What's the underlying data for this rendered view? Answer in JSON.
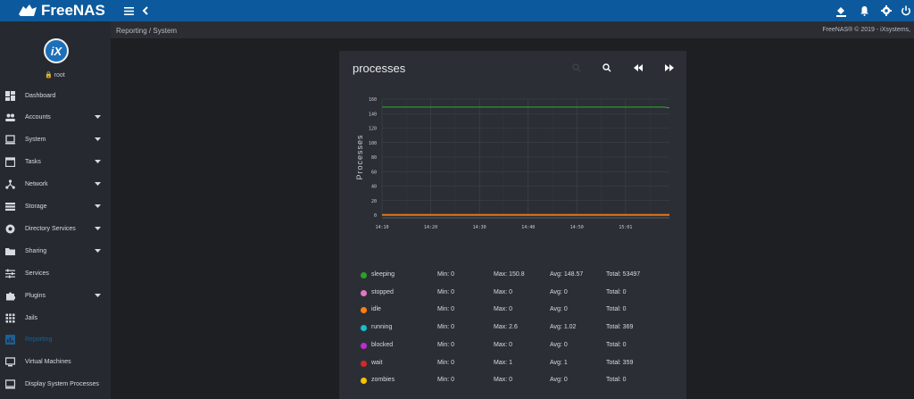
{
  "app": {
    "name": "FreeNAS"
  },
  "breadcrumb": {
    "parent": "Reporting",
    "sep": "/",
    "current": "System"
  },
  "copyright": "FreeNAS® © 2019 - iXsystems,",
  "user": {
    "name": "root"
  },
  "sidebar": {
    "items": [
      {
        "label": "Dashboard",
        "icon": "dashboard-icon",
        "caret": false
      },
      {
        "label": "Accounts",
        "icon": "accounts-icon",
        "caret": true
      },
      {
        "label": "System",
        "icon": "system-icon",
        "caret": true
      },
      {
        "label": "Tasks",
        "icon": "tasks-icon",
        "caret": true
      },
      {
        "label": "Network",
        "icon": "network-icon",
        "caret": true
      },
      {
        "label": "Storage",
        "icon": "storage-icon",
        "caret": true
      },
      {
        "label": "Directory Services",
        "icon": "directory-icon",
        "caret": true
      },
      {
        "label": "Sharing",
        "icon": "sharing-icon",
        "caret": true
      },
      {
        "label": "Services",
        "icon": "services-icon",
        "caret": false
      },
      {
        "label": "Plugins",
        "icon": "plugins-icon",
        "caret": true
      },
      {
        "label": "Jails",
        "icon": "jails-icon",
        "caret": false
      },
      {
        "label": "Reporting",
        "icon": "reporting-icon",
        "caret": false,
        "active": true
      },
      {
        "label": "Virtual Machines",
        "icon": "vm-icon",
        "caret": false
      },
      {
        "label": "Display System Processes",
        "icon": "processes-icon",
        "caret": false
      }
    ]
  },
  "panel": {
    "title": "processes"
  },
  "colors": {
    "topbar": "#0c5a9d",
    "sidebar": "#262a30",
    "panel": "#2b2f35",
    "active": "#1b5f96"
  },
  "chart_data": {
    "type": "line",
    "ylabel": "Processes",
    "ylim": [
      0,
      160
    ],
    "yticks": [
      "160",
      "140",
      "120",
      "100",
      "80",
      "60",
      "40",
      "20",
      "0"
    ],
    "xticks": [
      "14:10",
      "14:20",
      "14:30",
      "14:40",
      "14:50",
      "15:01"
    ],
    "grid": true,
    "series": [
      {
        "name": "sleeping",
        "color": "#2ca02c",
        "values": [
          149,
          149,
          149,
          149,
          149,
          149,
          149,
          149,
          149,
          149,
          149,
          149,
          149,
          149,
          149,
          149,
          149,
          149,
          149,
          149,
          149,
          149,
          149,
          149,
          149,
          149,
          149,
          149,
          149,
          149,
          149,
          149,
          149,
          149,
          149,
          149,
          149,
          149,
          149,
          149,
          149,
          149,
          149,
          149,
          149,
          149,
          149,
          149,
          149,
          148
        ]
      },
      {
        "name": "stopped",
        "color": "#e377c2",
        "values": [
          0,
          0
        ]
      },
      {
        "name": "idle",
        "color": "#ff7f0e",
        "values": [
          0,
          0
        ]
      },
      {
        "name": "running",
        "color": "#17becf",
        "values": [
          1,
          1,
          1,
          1,
          1,
          1,
          1,
          1,
          1,
          1,
          1,
          1,
          1,
          1,
          1,
          1,
          1,
          1,
          1,
          1,
          1,
          1,
          1,
          1,
          1,
          1,
          1,
          1,
          1,
          1,
          1,
          1,
          1,
          1,
          1,
          1,
          1,
          1,
          1,
          1,
          1,
          1,
          1,
          1,
          1,
          1,
          1,
          1,
          1,
          1
        ]
      },
      {
        "name": "blocked",
        "color": "#c02cd1",
        "values": [
          0,
          0
        ]
      },
      {
        "name": "wait",
        "color": "#d62728",
        "values": [
          1,
          1
        ]
      },
      {
        "name": "zombies",
        "color": "#f5c400",
        "values": [
          0,
          0
        ]
      }
    ]
  },
  "legend": [
    {
      "name": "sleeping",
      "color": "#2ca02c",
      "min": "Min: 0",
      "max": "Max: 150.8",
      "avg": "Avg: 148.57",
      "total": "Total: 53497"
    },
    {
      "name": "stopped",
      "color": "#e377c2",
      "min": "Min: 0",
      "max": "Max: 0",
      "avg": "Avg: 0",
      "total": "Total: 0"
    },
    {
      "name": "idle",
      "color": "#ff7f0e",
      "min": "Min: 0",
      "max": "Max: 0",
      "avg": "Avg: 0",
      "total": "Total: 0"
    },
    {
      "name": "running",
      "color": "#17becf",
      "min": "Min: 0",
      "max": "Max: 2.6",
      "avg": "Avg: 1.02",
      "total": "Total: 369"
    },
    {
      "name": "blocked",
      "color": "#c02cd1",
      "min": "Min: 0",
      "max": "Max: 0",
      "avg": "Avg: 0",
      "total": "Total: 0"
    },
    {
      "name": "wait",
      "color": "#d62728",
      "min": "Min: 0",
      "max": "Max: 1",
      "avg": "Avg: 1",
      "total": "Total: 359"
    },
    {
      "name": "zombies",
      "color": "#f5c400",
      "min": "Min: 0",
      "max": "Max: 0",
      "avg": "Avg: 0",
      "total": "Total: 0"
    }
  ]
}
